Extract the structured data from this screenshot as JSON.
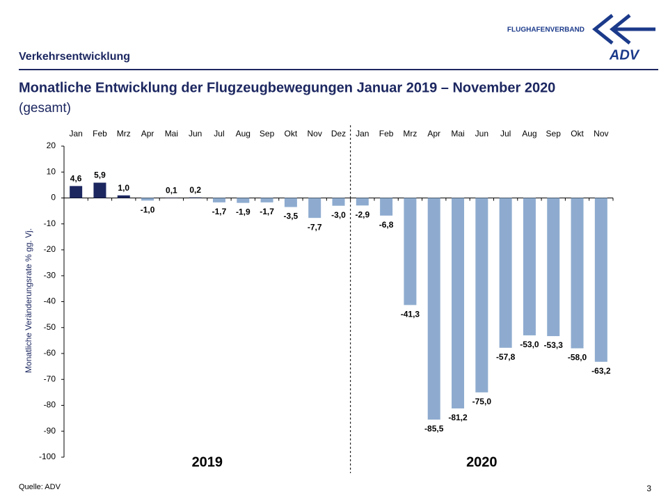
{
  "header": {
    "section": "Verkehrsentwicklung",
    "logo_text": "FLUGHAFENVERBAND",
    "logo_mark": "ADV"
  },
  "chart_data": {
    "type": "bar",
    "title": "Monatliche Entwicklung der Flugzeugbewegungen Januar 2019 – November 2020",
    "subtitle": "(gesamt)",
    "y_label": "Monatliche Veränderungsrate % gg. Vj.",
    "categories": [
      "Jan",
      "Feb",
      "Mrz",
      "Apr",
      "Mai",
      "Jun",
      "Jul",
      "Aug",
      "Sep",
      "Okt",
      "Nov",
      "Dez",
      "Jan",
      "Feb",
      "Mrz",
      "Apr",
      "Mai",
      "Jun",
      "Jul",
      "Aug",
      "Sep",
      "Okt",
      "Nov"
    ],
    "values": [
      4.6,
      5.9,
      1.0,
      -1.0,
      0.1,
      0.2,
      -1.7,
      -1.9,
      -1.7,
      -3.5,
      -7.7,
      -3.0,
      -2.9,
      -6.8,
      -41.3,
      -85.5,
      -81.2,
      -75.0,
      -57.8,
      -53.0,
      -53.3,
      -58.0,
      -63.2
    ],
    "value_labels": [
      "4,6",
      "5,9",
      "1,0",
      "-1,0",
      "0,1",
      "0,2",
      "-1,7",
      "-1,9",
      "-1,7",
      "-3,5",
      "-7,7",
      "-3,0",
      "-2,9",
      "-6,8",
      "-41,3",
      "-85,5",
      "-81,2",
      "-75,0",
      "-57,8",
      "-53,0",
      "-53,3",
      "-58,0",
      "-63,2"
    ],
    "groups": [
      "2019",
      "2020"
    ],
    "positive_color": "#1c2760",
    "negative_color": "#8eabcf",
    "ylim": [
      -100,
      20
    ],
    "yticks": [
      20,
      10,
      0,
      -10,
      -20,
      -30,
      -40,
      -50,
      -60,
      -70,
      -80,
      -90,
      -100
    ]
  },
  "footer": {
    "source": "Quelle: ADV",
    "page": 3
  }
}
